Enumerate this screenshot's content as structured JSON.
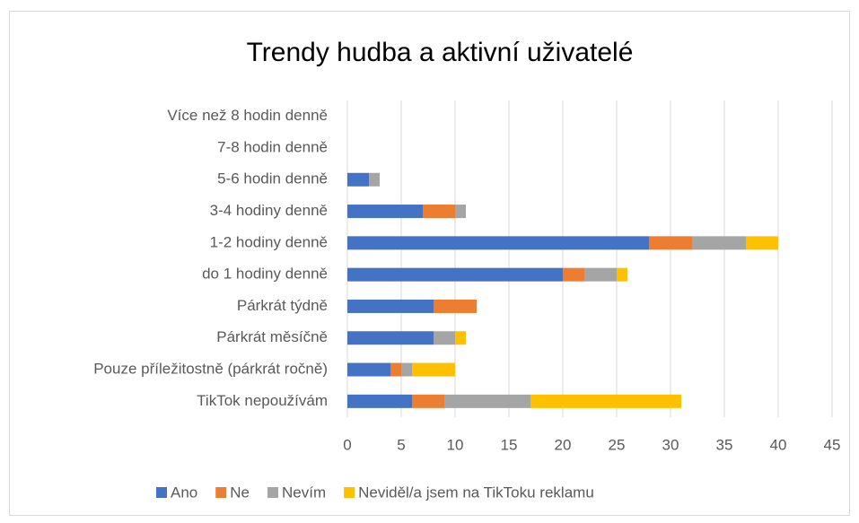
{
  "chart_data": {
    "type": "stacked_bar_horizontal",
    "title": "Trendy hudba a aktivní uživatelé",
    "categories": [
      "Více než 8 hodin denně",
      "7-8 hodin denně",
      "5-6 hodin denně",
      "3-4 hodiny denně",
      "1-2 hodiny denně",
      "do 1 hodiny denně",
      "Párkrát týdně",
      "Párkrát měsíčně",
      "Pouze příležitostně (párkrát ročně)",
      "TikTok nepoužívám"
    ],
    "series": [
      {
        "name": "Ano",
        "color": "#4472c4",
        "values": [
          0,
          0,
          2,
          7,
          28,
          20,
          8,
          8,
          4,
          6
        ]
      },
      {
        "name": "Ne",
        "color": "#ed7d31",
        "values": [
          0,
          0,
          0,
          3,
          4,
          2,
          4,
          0,
          1,
          3
        ]
      },
      {
        "name": "Nevím",
        "color": "#a5a5a5",
        "values": [
          0,
          0,
          1,
          1,
          5,
          3,
          0,
          2,
          1,
          8
        ]
      },
      {
        "name": "Neviděl/a jsem na TikToku reklamu",
        "color": "#ffc000",
        "values": [
          0,
          0,
          0,
          0,
          3,
          1,
          0,
          1,
          4,
          14
        ]
      }
    ],
    "xlim": [
      0,
      45
    ],
    "xticks": [
      0,
      5,
      10,
      15,
      20,
      25,
      30,
      35,
      40,
      45
    ],
    "grid": true,
    "legend": "bottom"
  }
}
